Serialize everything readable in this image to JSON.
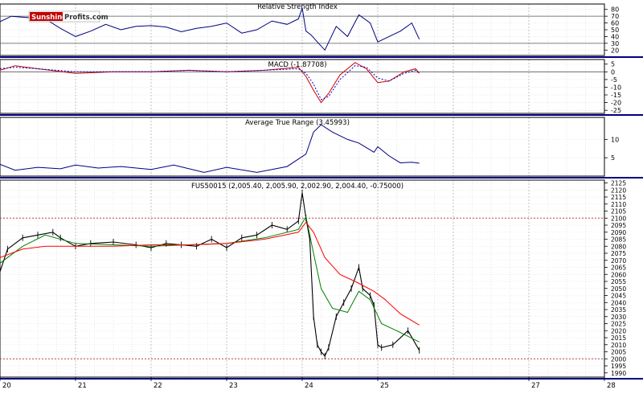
{
  "logo": {
    "part1": "Sunshine",
    "part2": "Profits.com"
  },
  "chart_data": [
    {
      "type": "line",
      "title": "Relative Strength Index",
      "ylim": [
        12,
        88
      ],
      "yticks": [
        20,
        30,
        40,
        50,
        60,
        70,
        80
      ],
      "reference_lines": [
        30,
        70
      ],
      "series": [
        {
          "color": "#000080",
          "x": [
            20.0,
            20.15,
            20.35,
            20.6,
            20.8,
            21.0,
            21.2,
            21.4,
            21.6,
            21.8,
            22.0,
            22.2,
            22.4,
            22.6,
            22.8,
            23.0,
            23.2,
            23.4,
            23.6,
            23.8,
            23.95,
            24.0,
            24.05,
            24.12,
            24.2,
            24.3,
            24.45,
            24.6,
            24.75,
            24.9,
            25.0,
            25.15,
            25.3,
            25.45,
            25.55
          ],
          "values": [
            62,
            70,
            68,
            66,
            52,
            40,
            48,
            58,
            50,
            55,
            56,
            54,
            47,
            52,
            55,
            60,
            45,
            50,
            63,
            58,
            66,
            82,
            48,
            42,
            32,
            20,
            55,
            40,
            72,
            60,
            32,
            40,
            48,
            60,
            36
          ]
        }
      ]
    },
    {
      "type": "line",
      "title": "MACD (-1.87708)",
      "ylim": [
        -27,
        8
      ],
      "yticks": [
        5,
        0,
        -5,
        -10,
        -15,
        -20,
        -25
      ],
      "reference_lines": [
        0
      ],
      "series": [
        {
          "color": "#cc0000",
          "x": [
            20.0,
            20.2,
            20.5,
            21.0,
            21.5,
            22.0,
            22.5,
            23.0,
            23.5,
            23.95,
            24.05,
            24.15,
            24.25,
            24.35,
            24.5,
            24.7,
            24.85,
            25.0,
            25.15,
            25.35,
            25.5,
            25.55
          ],
          "values": [
            1,
            4,
            2,
            -1,
            0,
            0,
            1,
            0,
            1,
            3,
            -3,
            -12,
            -20,
            -14,
            -2,
            6,
            2,
            -7,
            -6,
            0,
            2,
            -1
          ]
        },
        {
          "color": "#0000cc",
          "dashed": true,
          "x": [
            20.0,
            20.2,
            20.5,
            21.0,
            21.5,
            22.0,
            22.5,
            23.0,
            23.5,
            23.95,
            24.05,
            24.15,
            24.25,
            24.35,
            24.5,
            24.7,
            24.85,
            25.0,
            25.15,
            25.35,
            25.5,
            25.55
          ],
          "values": [
            2,
            3,
            2,
            0,
            0,
            0,
            1,
            0,
            1,
            2,
            -1,
            -8,
            -18,
            -16,
            -5,
            4,
            3,
            -4,
            -6,
            -1,
            1,
            -1
          ]
        }
      ]
    },
    {
      "type": "line",
      "title": "Average True Range (3.45993)",
      "ylim": [
        0,
        16
      ],
      "yticks": [
        5,
        10
      ],
      "series": [
        {
          "color": "#000080",
          "x": [
            20.0,
            20.2,
            20.5,
            20.8,
            21.0,
            21.3,
            21.6,
            22.0,
            22.3,
            22.7,
            23.0,
            23.4,
            23.8,
            24.05,
            24.15,
            24.25,
            24.4,
            24.6,
            24.75,
            24.95,
            25.0,
            25.15,
            25.3,
            25.45,
            25.55
          ],
          "values": [
            3.2,
            1.6,
            2.4,
            2.0,
            3.0,
            2.2,
            2.6,
            1.8,
            3.0,
            1.0,
            2.4,
            1.0,
            2.6,
            6.0,
            12.0,
            14.0,
            12.0,
            10.0,
            9.0,
            6.5,
            8.0,
            5.5,
            3.6,
            3.8,
            3.5
          ]
        }
      ]
    },
    {
      "type": "line",
      "title": "FUS50015 (2,005.40, 2,005.90, 2,002.90, 2,004.40, -0.75000)",
      "x_range": [
        20,
        28
      ],
      "xticks": [
        "20",
        "21",
        "22",
        "23",
        "24",
        "25",
        "27",
        "28"
      ],
      "ylim": [
        1987,
        2127
      ],
      "yticks": [
        2125,
        2120,
        2115,
        2110,
        2105,
        2100,
        2095,
        2090,
        2085,
        2080,
        2075,
        2070,
        2065,
        2060,
        2055,
        2050,
        2045,
        2040,
        2035,
        2030,
        2025,
        2020,
        2015,
        2010,
        2005,
        2000,
        1995,
        1990
      ],
      "reference_lines": [
        2100,
        2000
      ],
      "price": {
        "color": "#000000",
        "x": [
          20.0,
          20.1,
          20.3,
          20.5,
          20.7,
          20.8,
          21.0,
          21.2,
          21.5,
          21.8,
          22.0,
          22.2,
          22.4,
          22.6,
          22.8,
          23.0,
          23.2,
          23.4,
          23.6,
          23.8,
          23.95,
          24.0,
          24.05,
          24.1,
          24.15,
          24.2,
          24.25,
          24.3,
          24.35,
          24.45,
          24.55,
          24.65,
          24.75,
          24.8,
          24.9,
          24.95,
          25.0,
          25.05,
          25.2,
          25.4,
          25.55
        ],
        "values": [
          2062,
          2078,
          2086,
          2088,
          2090,
          2086,
          2080,
          2082,
          2083,
          2081,
          2079,
          2082,
          2081,
          2080,
          2085,
          2079,
          2086,
          2088,
          2095,
          2092,
          2098,
          2118,
          2100,
          2085,
          2030,
          2010,
          2005,
          2002,
          2008,
          2030,
          2040,
          2050,
          2065,
          2050,
          2045,
          2038,
          2010,
          2008,
          2010,
          2020,
          2006
        ]
      },
      "series": [
        {
          "color": "#008000",
          "x": [
            20.0,
            20.3,
            20.6,
            21.0,
            21.5,
            22.0,
            22.5,
            23.0,
            23.5,
            23.95,
            24.05,
            24.15,
            24.25,
            24.4,
            24.6,
            24.75,
            24.9,
            25.05,
            25.25,
            25.55
          ],
          "values": [
            2068,
            2080,
            2088,
            2082,
            2081,
            2080,
            2081,
            2082,
            2086,
            2092,
            2101,
            2075,
            2050,
            2036,
            2033,
            2048,
            2042,
            2025,
            2020,
            2012
          ]
        },
        {
          "color": "#ff0000",
          "x": [
            20.0,
            20.3,
            20.6,
            21.0,
            21.5,
            22.0,
            22.5,
            23.0,
            23.5,
            23.95,
            24.05,
            24.15,
            24.3,
            24.5,
            24.7,
            24.95,
            25.1,
            25.3,
            25.55
          ],
          "values": [
            2072,
            2078,
            2080,
            2080,
            2080,
            2081,
            2081,
            2082,
            2085,
            2090,
            2097,
            2090,
            2072,
            2060,
            2055,
            2048,
            2042,
            2032,
            2024
          ]
        }
      ]
    }
  ]
}
